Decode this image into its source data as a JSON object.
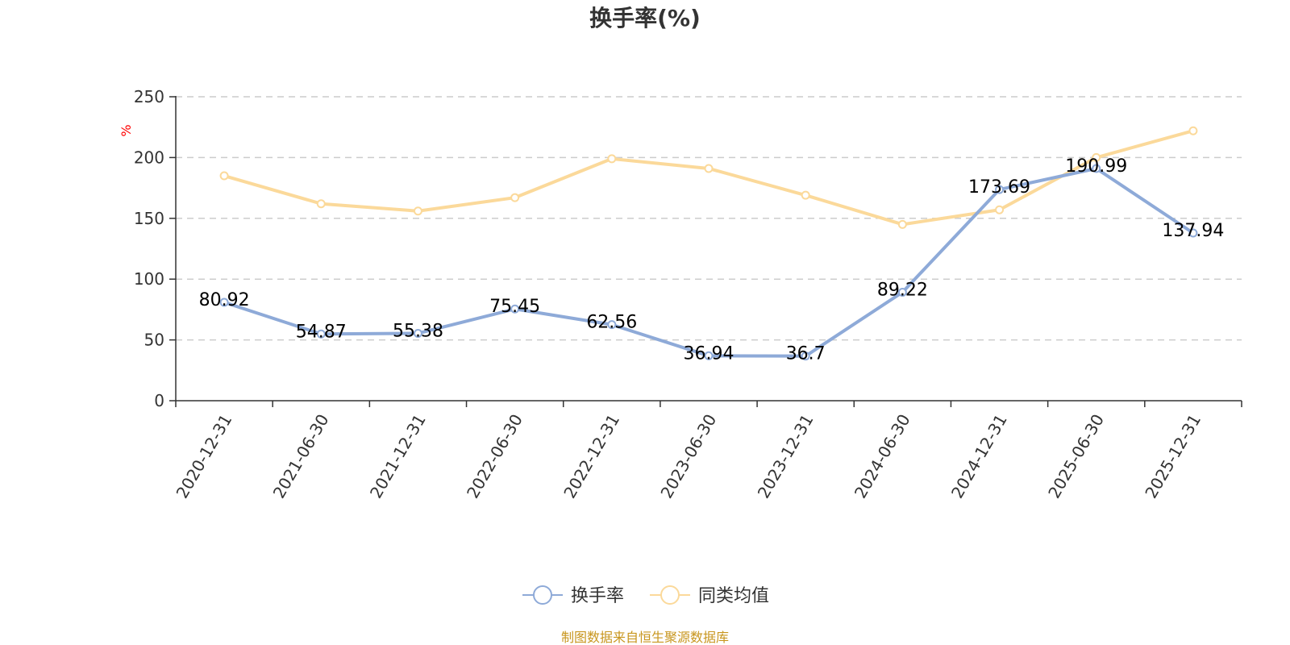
{
  "chart_data": {
    "type": "line",
    "title": "换手率(%)",
    "ylabel": "%",
    "ylim": [
      0,
      250
    ],
    "yticks": [
      0,
      50,
      100,
      150,
      200,
      250
    ],
    "grid": true,
    "categories": [
      "2020-12-31",
      "2021-06-30",
      "2021-12-31",
      "2022-06-30",
      "2022-12-31",
      "2023-06-30",
      "2023-12-31",
      "2024-06-30",
      "2024-12-31",
      "2025-06-30",
      "2025-12-31"
    ],
    "series": [
      {
        "name": "换手率",
        "color": "#8eaad8",
        "values": [
          80.92,
          54.87,
          55.38,
          75.45,
          62.56,
          36.94,
          36.7,
          89.22,
          173.69,
          190.99,
          137.94
        ],
        "labels": [
          "80.92",
          "54.87",
          "55.38",
          "75.45",
          "62.56",
          "36.94",
          "36.7",
          "89.22",
          "173.69",
          "190.99",
          "137.94"
        ]
      },
      {
        "name": "同类均值",
        "color": "#fbd99a",
        "values": [
          185,
          162,
          156,
          167,
          199,
          191,
          169,
          145,
          157,
          200,
          222
        ]
      }
    ],
    "legend_position": "bottom-center",
    "source": "制图数据来自恒生聚源数据库",
    "source_color": "#c8961e"
  }
}
